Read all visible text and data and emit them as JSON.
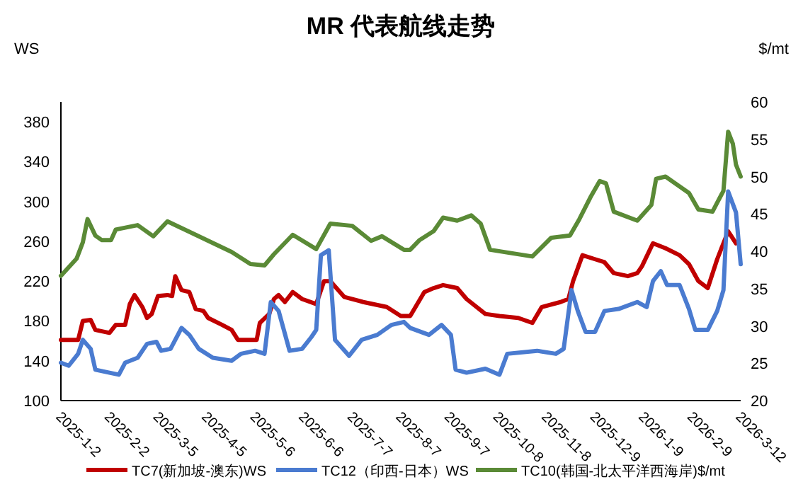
{
  "chart_data": {
    "type": "line",
    "title": "MR  代表航线走势",
    "ylabel": "WS",
    "y2label": "$/mt",
    "xlim": [
      "2025-01-02",
      "2026-03-12"
    ],
    "xticks": [
      {
        "value": "2025-01-02",
        "label": "2025-1-2"
      },
      {
        "value": "2025-02-02",
        "label": "2025-2-2"
      },
      {
        "value": "2025-03-05",
        "label": "2025-3-5"
      },
      {
        "value": "2025-04-05",
        "label": "2025-4-5"
      },
      {
        "value": "2025-05-06",
        "label": "2025-5-6"
      },
      {
        "value": "2025-06-06",
        "label": "2025-6-6"
      },
      {
        "value": "2025-07-07",
        "label": "2025-7-7"
      },
      {
        "value": "2025-08-07",
        "label": "2025-8-7"
      },
      {
        "value": "2025-09-07",
        "label": "2025-9-7"
      },
      {
        "value": "2025-10-08",
        "label": "2025-10-8"
      },
      {
        "value": "2025-11-08",
        "label": "2025-11-8"
      },
      {
        "value": "2025-12-09",
        "label": "2025-12-9"
      },
      {
        "value": "2026-01-09",
        "label": "2026-1-9"
      },
      {
        "value": "2026-02-09",
        "label": "2026-2-9"
      },
      {
        "value": "2026-03-12",
        "label": "2026-3-12"
      }
    ],
    "ylim": [
      100,
      400
    ],
    "yticks": [
      100,
      140,
      180,
      220,
      260,
      300,
      340,
      380
    ],
    "y2lim": [
      20,
      60
    ],
    "y2ticks": [
      20,
      25,
      30,
      35,
      40,
      45,
      50,
      55,
      60
    ],
    "grid": false,
    "legend": "bottom",
    "marker": "none",
    "line_style": "solid",
    "series": [
      {
        "name": "TC7(新加坡-澳东)WS",
        "color": "#c00000",
        "x": [
          "2025-01-02",
          "2025-01-13",
          "2025-01-16",
          "2025-01-21",
          "2025-01-24",
          "2025-02-02",
          "2025-02-06",
          "2025-02-12",
          "2025-02-15",
          "2025-02-18",
          "2025-02-23",
          "2025-02-26",
          "2025-03-01",
          "2025-03-05",
          "2025-03-11",
          "2025-03-14",
          "2025-03-16",
          "2025-03-20",
          "2025-03-25",
          "2025-03-29",
          "2025-04-03",
          "2025-04-06",
          "2025-04-15",
          "2025-04-21",
          "2025-04-25",
          "2025-05-07",
          "2025-05-09",
          "2025-05-15",
          "2025-05-18",
          "2025-05-21",
          "2025-05-25",
          "2025-05-30",
          "2025-06-05",
          "2025-06-14",
          "2025-06-19",
          "2025-06-23",
          "2025-07-02",
          "2025-07-14",
          "2025-07-29",
          "2025-08-07",
          "2025-08-13",
          "2025-08-22",
          "2025-08-28",
          "2025-09-03",
          "2025-09-12",
          "2025-09-18",
          "2025-09-30",
          "2025-10-09",
          "2025-10-21",
          "2025-10-30",
          "2025-11-05",
          "2025-11-17",
          "2025-11-22",
          "2025-11-25",
          "2025-12-01",
          "2025-12-09",
          "2025-12-15",
          "2025-12-21",
          "2025-12-30",
          "2026-01-05",
          "2026-01-08",
          "2026-01-15",
          "2026-01-23",
          "2026-02-01",
          "2026-02-07",
          "2026-02-13",
          "2026-02-19",
          "2026-02-25",
          "2026-03-04",
          "2026-03-09"
        ],
        "values": [
          161,
          161,
          180,
          181,
          171,
          168,
          176,
          176,
          197,
          206,
          194,
          183,
          187,
          205,
          206,
          205,
          225,
          211,
          209,
          192,
          190,
          183,
          176,
          171,
          161,
          161,
          178,
          187,
          202,
          206,
          199,
          209,
          202,
          197,
          220,
          220,
          204,
          199,
          194,
          185,
          185,
          209,
          213,
          216,
          213,
          202,
          187,
          185,
          183,
          178,
          194,
          199,
          202,
          220,
          246,
          242,
          239,
          228,
          225,
          228,
          235,
          258,
          253,
          246,
          237,
          220,
          213,
          242,
          270,
          258
        ]
      },
      {
        "name": "TC12（印西-日本）WS",
        "color": "#4a7bd0",
        "x": [
          "2025-01-02",
          "2025-01-07",
          "2025-01-13",
          "2025-01-16",
          "2025-01-21",
          "2025-01-24",
          "2025-02-02",
          "2025-02-08",
          "2025-02-12",
          "2025-02-20",
          "2025-02-26",
          "2025-03-04",
          "2025-03-07",
          "2025-03-13",
          "2025-03-20",
          "2025-03-25",
          "2025-03-31",
          "2025-04-09",
          "2025-04-21",
          "2025-04-27",
          "2025-05-06",
          "2025-05-12",
          "2025-05-16",
          "2025-05-21",
          "2025-05-28",
          "2025-06-05",
          "2025-06-11",
          "2025-06-14",
          "2025-06-17",
          "2025-06-22",
          "2025-06-26",
          "2025-07-05",
          "2025-07-13",
          "2025-07-23",
          "2025-08-01",
          "2025-08-09",
          "2025-08-13",
          "2025-08-25",
          "2025-09-02",
          "2025-09-08",
          "2025-09-11",
          "2025-09-18",
          "2025-09-30",
          "2025-10-09",
          "2025-10-14",
          "2025-11-02",
          "2025-11-14",
          "2025-11-19",
          "2025-11-24",
          "2025-11-28",
          "2025-12-03",
          "2025-12-09",
          "2025-12-15",
          "2025-12-24",
          "2026-01-05",
          "2026-01-11",
          "2026-01-15",
          "2026-01-20",
          "2026-01-24",
          "2026-02-01",
          "2026-02-07",
          "2026-02-11",
          "2026-02-19",
          "2026-02-25",
          "2026-03-01",
          "2026-03-04",
          "2026-03-09",
          "2026-03-12"
        ],
        "values": [
          138,
          135,
          147,
          161,
          152,
          131,
          128,
          126,
          138,
          143,
          157,
          159,
          150,
          152,
          173,
          166,
          152,
          143,
          140,
          147,
          150,
          147,
          199,
          190,
          150,
          152,
          164,
          171,
          246,
          251,
          161,
          145,
          161,
          166,
          176,
          179,
          173,
          166,
          176,
          166,
          131,
          128,
          132,
          126,
          147,
          150,
          147,
          152,
          211,
          190,
          169,
          169,
          190,
          192,
          199,
          194,
          220,
          230,
          216,
          216,
          192,
          171,
          171,
          190,
          211,
          310,
          289,
          237
        ]
      },
      {
        "name": "TC10(韩国-北太平洋西海岸)$/mt",
        "color": "#5a8a36",
        "axis": "y2",
        "x": [
          "2025-01-02",
          "2025-01-12",
          "2025-01-16",
          "2025-01-19",
          "2025-01-24",
          "2025-01-28",
          "2025-02-03",
          "2025-02-06",
          "2025-02-20",
          "2025-03-02",
          "2025-03-11",
          "2025-03-25",
          "2025-04-12",
          "2025-04-21",
          "2025-05-03",
          "2025-05-12",
          "2025-05-18",
          "2025-05-30",
          "2025-06-14",
          "2025-06-23",
          "2025-07-07",
          "2025-07-19",
          "2025-07-26",
          "2025-08-09",
          "2025-08-13",
          "2025-08-19",
          "2025-08-28",
          "2025-09-03",
          "2025-09-12",
          "2025-09-21",
          "2025-09-27",
          "2025-10-03",
          "2025-10-15",
          "2025-10-30",
          "2025-11-11",
          "2025-11-23",
          "2025-11-29",
          "2025-12-06",
          "2025-12-12",
          "2025-12-16",
          "2025-12-21",
          "2026-01-05",
          "2026-01-14",
          "2026-01-17",
          "2026-01-23",
          "2026-02-07",
          "2026-02-13",
          "2026-02-22",
          "2026-02-25",
          "2026-03-01",
          "2026-03-04",
          "2026-03-07",
          "2026-03-09",
          "2026-03-12"
        ],
        "values": [
          36.7,
          39.0,
          41.2,
          44.3,
          42.1,
          41.5,
          41.5,
          42.9,
          43.5,
          42.0,
          44.0,
          42.6,
          40.8,
          39.9,
          38.3,
          38.1,
          39.6,
          42.2,
          40.3,
          43.7,
          43.4,
          41.4,
          42.0,
          40.2,
          40.2,
          41.5,
          42.7,
          44.5,
          44.1,
          44.8,
          43.7,
          40.2,
          39.8,
          39.3,
          41.8,
          42.1,
          44.3,
          47.2,
          49.4,
          49.1,
          45.3,
          44.1,
          46.2,
          49.7,
          50.0,
          47.8,
          45.6,
          45.3,
          46.5,
          48.1,
          56.0,
          54.4,
          51.6,
          50.0
        ]
      }
    ]
  }
}
